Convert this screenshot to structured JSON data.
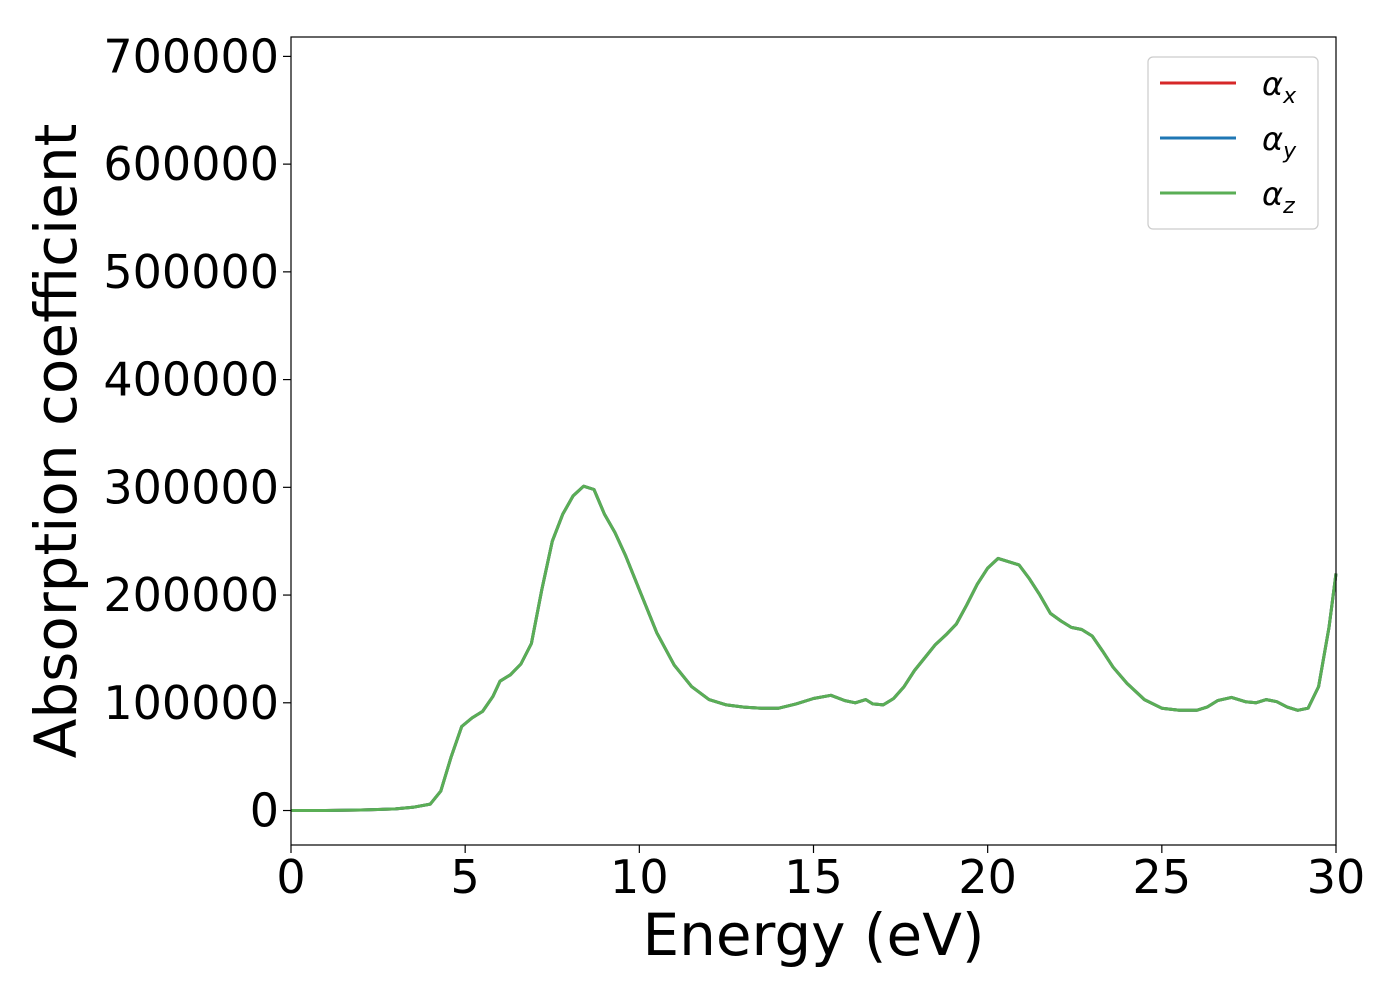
{
  "chart_data": {
    "type": "line",
    "title": "",
    "xlabel": "Energy (eV)",
    "ylabel": "Absorption coefficient",
    "xlim": [
      0,
      30
    ],
    "ylim": [
      -32000,
      718000
    ],
    "xticks": [
      0,
      5,
      10,
      15,
      20,
      25,
      30
    ],
    "xtick_labels": [
      "0",
      "5",
      "10",
      "15",
      "20",
      "25",
      "30"
    ],
    "yticks": [
      0,
      100000,
      200000,
      300000,
      400000,
      500000,
      600000,
      700000
    ],
    "ytick_labels": [
      "0",
      "100000",
      "200000",
      "300000",
      "400000",
      "500000",
      "600000",
      "700000"
    ],
    "grid": false,
    "legend_position": "top-right",
    "x": [
      0,
      1,
      2,
      3,
      3.5,
      4,
      4.3,
      4.6,
      4.9,
      5.2,
      5.5,
      5.8,
      6.0,
      6.3,
      6.6,
      6.9,
      7.2,
      7.5,
      7.8,
      8.1,
      8.4,
      8.7,
      9.0,
      9.3,
      9.6,
      10.0,
      10.5,
      11.0,
      11.5,
      12.0,
      12.5,
      13.0,
      13.5,
      14.0,
      14.5,
      15.0,
      15.5,
      15.9,
      16.2,
      16.5,
      16.7,
      17.0,
      17.3,
      17.6,
      17.9,
      18.2,
      18.5,
      18.8,
      19.1,
      19.4,
      19.7,
      20.0,
      20.3,
      20.6,
      20.9,
      21.2,
      21.5,
      21.8,
      22.1,
      22.4,
      22.7,
      23.0,
      23.3,
      23.6,
      24.0,
      24.5,
      25.0,
      25.5,
      26.0,
      26.3,
      26.6,
      27.0,
      27.4,
      27.7,
      28.0,
      28.3,
      28.6,
      28.9,
      29.2,
      29.5,
      29.8,
      30.0
    ],
    "series": [
      {
        "name": "α_x",
        "color": "#d62728",
        "values": [
          0,
          0,
          500,
          1500,
          3000,
          6000,
          18000,
          50000,
          78000,
          86000,
          92000,
          106000,
          120000,
          126000,
          136000,
          155000,
          205000,
          250000,
          275000,
          292000,
          301000,
          298000,
          275000,
          258000,
          237000,
          205000,
          165000,
          135000,
          115000,
          103000,
          98000,
          96000,
          95000,
          95000,
          99000,
          104000,
          107000,
          102000,
          100000,
          103000,
          99000,
          98000,
          104000,
          115000,
          130000,
          142000,
          154000,
          163000,
          173000,
          191000,
          210000,
          225000,
          234000,
          231000,
          228000,
          215000,
          200000,
          183000,
          176000,
          170000,
          168000,
          162000,
          148000,
          133000,
          118000,
          103000,
          95000,
          93000,
          93000,
          96000,
          102000,
          105000,
          101000,
          100000,
          103000,
          101000,
          96000,
          93000,
          95000,
          115000,
          170000,
          220000
        ]
      },
      {
        "name": "α_y",
        "color": "#1f77b4",
        "values": [
          0,
          0,
          500,
          1500,
          3000,
          6000,
          18000,
          50000,
          78000,
          86000,
          92000,
          106000,
          120000,
          126000,
          136000,
          155000,
          205000,
          250000,
          275000,
          292000,
          301000,
          298000,
          275000,
          258000,
          237000,
          205000,
          165000,
          135000,
          115000,
          103000,
          98000,
          96000,
          95000,
          95000,
          99000,
          104000,
          107000,
          102000,
          100000,
          103000,
          99000,
          98000,
          104000,
          115000,
          130000,
          142000,
          154000,
          163000,
          173000,
          191000,
          210000,
          225000,
          234000,
          231000,
          228000,
          215000,
          200000,
          183000,
          176000,
          170000,
          168000,
          162000,
          148000,
          133000,
          118000,
          103000,
          95000,
          93000,
          93000,
          96000,
          102000,
          105000,
          101000,
          100000,
          103000,
          101000,
          96000,
          93000,
          95000,
          115000,
          170000,
          220000
        ]
      },
      {
        "name": "α_z",
        "color": "#5aae55",
        "values": [
          0,
          0,
          500,
          1500,
          3000,
          6000,
          18000,
          50000,
          78000,
          86000,
          92000,
          106000,
          120000,
          126000,
          136000,
          155000,
          205000,
          250000,
          275000,
          292000,
          301000,
          298000,
          275000,
          258000,
          237000,
          205000,
          165000,
          135000,
          115000,
          103000,
          98000,
          96000,
          95000,
          95000,
          99000,
          104000,
          107000,
          102000,
          100000,
          103000,
          99000,
          98000,
          104000,
          115000,
          130000,
          142000,
          154000,
          163000,
          173000,
          191000,
          210000,
          225000,
          234000,
          231000,
          228000,
          215000,
          200000,
          183000,
          176000,
          170000,
          168000,
          162000,
          148000,
          133000,
          118000,
          103000,
          95000,
          93000,
          93000,
          96000,
          102000,
          105000,
          101000,
          100000,
          103000,
          101000,
          96000,
          93000,
          95000,
          115000,
          170000,
          220000
        ]
      }
    ],
    "legend": [
      {
        "symbol": "α",
        "sub": "x",
        "color": "#d62728"
      },
      {
        "symbol": "α",
        "sub": "y",
        "color": "#1f77b4"
      },
      {
        "symbol": "α",
        "sub": "z",
        "color": "#5aae55"
      }
    ]
  }
}
